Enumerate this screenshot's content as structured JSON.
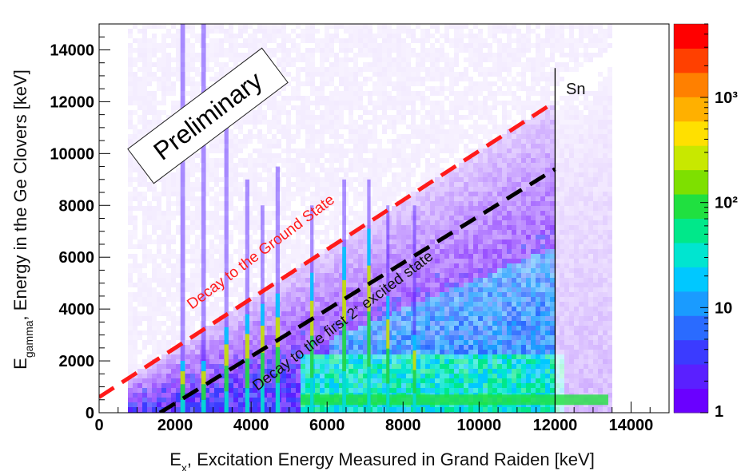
{
  "chart_data": {
    "type": "heatmap",
    "xlabel": "Ex, Excitation Energy Measured in Grand Raiden [keV]",
    "xlabel_parts": {
      "main": "E",
      "sub": "x",
      "rest": ", Excitation Energy Measured in Grand Raiden [keV]"
    },
    "ylabel": "Egamma, Energy in the Ge Clovers [keV]",
    "ylabel_parts": {
      "main": "E",
      "sub": "gamma",
      "rest": ", Energy  in the Ge Clovers [keV]"
    },
    "xlim": [
      0,
      15000
    ],
    "ylim": [
      0,
      15000
    ],
    "x_ticks": [
      0,
      2000,
      4000,
      6000,
      8000,
      10000,
      12000,
      14000
    ],
    "y_ticks": [
      0,
      2000,
      4000,
      6000,
      8000,
      10000,
      12000,
      14000
    ],
    "colorbar": {
      "scale": "log",
      "range": [
        1,
        5000
      ],
      "tick_values": [
        1,
        10,
        100,
        1000
      ],
      "tick_labels": [
        "1",
        "10",
        "10²",
        "10³"
      ],
      "colors": [
        "#6a00ff",
        "#5a20ff",
        "#3b3bff",
        "#2a6bff",
        "#1a9bff",
        "#00c8ff",
        "#00e5d0",
        "#00e88a",
        "#20e040",
        "#7ee000",
        "#c8e800",
        "#ffe000",
        "#ffb000",
        "#ff8000",
        "#ff4000",
        "#ff0000"
      ]
    },
    "bands": [
      {
        "x": 2200,
        "ymax": 15000,
        "peak": 2000,
        "w": 120
      },
      {
        "x": 2750,
        "ymax": 15000,
        "peak": 2000,
        "w": 120
      },
      {
        "x": 3350,
        "ymax": 11000,
        "peak": 3300,
        "w": 110
      },
      {
        "x": 3900,
        "ymax": 9000,
        "peak": 3800,
        "w": 110
      },
      {
        "x": 4300,
        "ymax": 8000,
        "peak": 4200,
        "w": 100
      },
      {
        "x": 4700,
        "ymax": 9500,
        "peak": 4600,
        "w": 110
      },
      {
        "x": 5600,
        "ymax": 8000,
        "peak": 5400,
        "w": 90
      },
      {
        "x": 6450,
        "ymax": 9000,
        "peak": 6400,
        "w": 100
      },
      {
        "x": 7100,
        "ymax": 9000,
        "peak": 7100,
        "w": 90
      },
      {
        "x": 7600,
        "ymax": 8000,
        "peak": 4500,
        "w": 80
      },
      {
        "x": 8300,
        "ymax": 8000,
        "peak": 3000,
        "w": 80
      }
    ],
    "lines": [
      {
        "name": "Decay to the Ground State",
        "color": "#ff1a1a",
        "x1": 0,
        "y1": 600,
        "x2": 12000,
        "y2": 12000,
        "style": "dashed"
      },
      {
        "name": "Decay to the first 2+ excited state",
        "color": "#000000",
        "x1": 1600,
        "y1": 0,
        "x2": 12000,
        "y2": 9400,
        "style": "dashed"
      },
      {
        "name": "Sn",
        "color": "#000000",
        "x1": 12000,
        "y1": 0,
        "x2": 12000,
        "y2": 13300,
        "style": "solid"
      }
    ],
    "annotations": {
      "ground_state": "Decay to the Ground State",
      "first_excited_prefix": "Decay to the first 2",
      "first_excited_sup": "+",
      "first_excited_suffix": " excited state",
      "sn": "Sn",
      "preliminary": "Preliminary"
    }
  }
}
